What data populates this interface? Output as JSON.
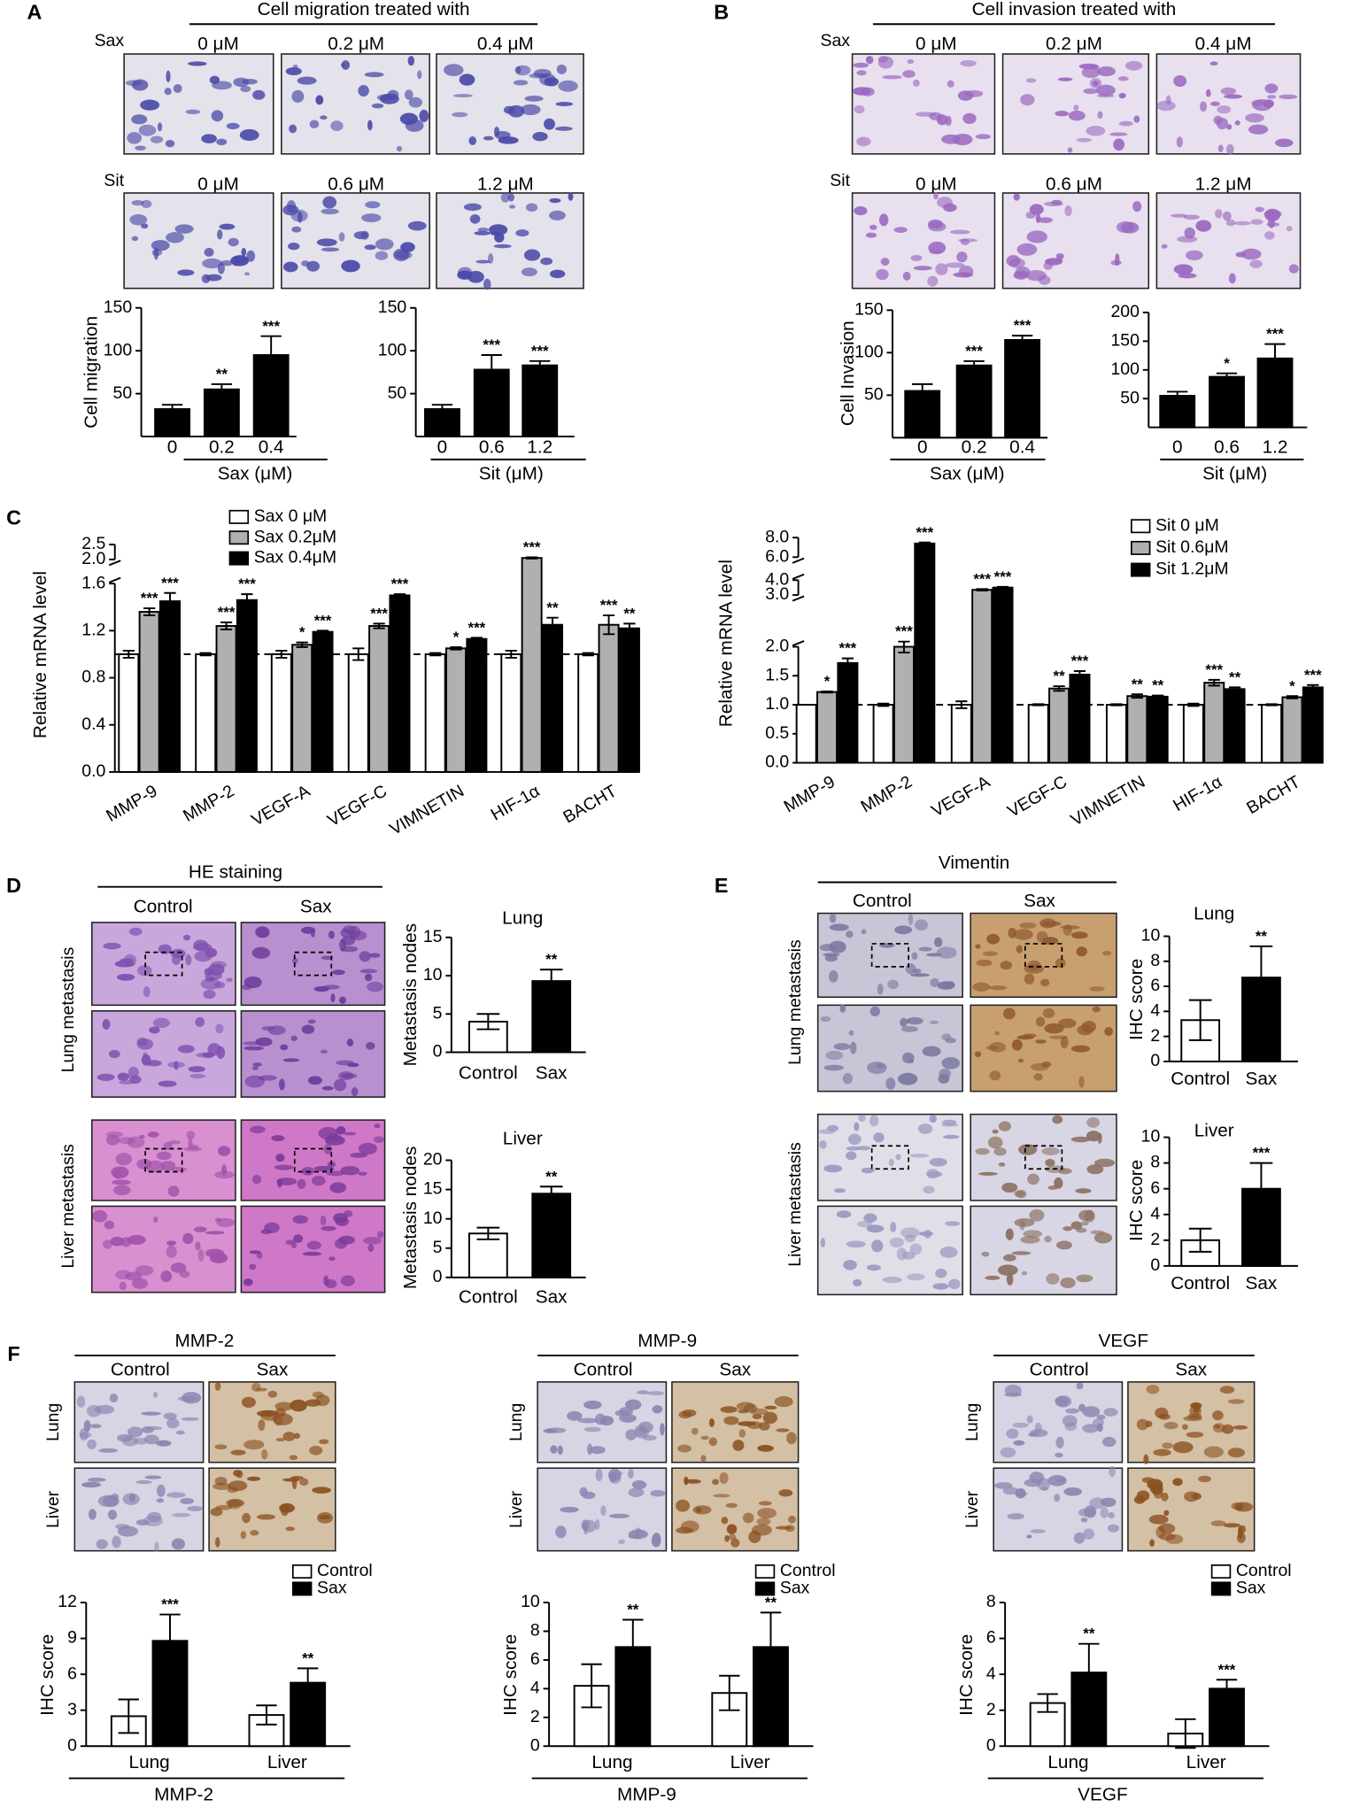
{
  "panels": {
    "A": {
      "letter": "A",
      "title": "Cell migration treated with",
      "rows": [
        {
          "drug": "Sax",
          "doses": [
            "0 μM",
            "0.2 μM",
            "0.4 μM"
          ]
        },
        {
          "drug": "Sit",
          "doses": [
            "0 μM",
            "0.6 μM",
            "1.2 μM"
          ]
        }
      ]
    },
    "B": {
      "letter": "B",
      "title": "Cell invasion treated with",
      "rows": [
        {
          "drug": "Sax",
          "doses": [
            "0 μM",
            "0.2 μM",
            "0.4 μM"
          ]
        },
        {
          "drug": "Sit",
          "doses": [
            "0 μM",
            "0.6 μM",
            "1.2 μM"
          ]
        }
      ]
    },
    "C": {
      "letter": "C"
    },
    "D": {
      "letter": "D",
      "title": "HE staining",
      "columns": [
        "Control",
        "Sax"
      ],
      "rows": [
        "Lung metastasis",
        "Liver metastasis"
      ]
    },
    "E": {
      "letter": "E",
      "title": "Vimentin",
      "columns": [
        "Control",
        "Sax"
      ],
      "rows": [
        "Lung metastasis",
        "Liver metastasis"
      ]
    },
    "F": {
      "letter": "F",
      "groups": [
        {
          "title": "MMP-2",
          "columns": [
            "Control",
            "Sax"
          ],
          "rows": [
            "Lung",
            "Liver"
          ]
        },
        {
          "title": "MMP-9",
          "columns": [
            "Control",
            "Sax"
          ],
          "rows": [
            "Lung",
            "Liver"
          ]
        },
        {
          "title": "VEGF",
          "columns": [
            "Control",
            "Sax"
          ],
          "rows": [
            "Lung",
            "Liver"
          ]
        }
      ]
    }
  },
  "chart_data": [
    {
      "type": "bar",
      "ylabel": "Cell migration",
      "xlabel": "Sax (μM)",
      "categories": [
        "0",
        "0.2",
        "0.4"
      ],
      "series": [
        {
          "color": "#000000",
          "values": [
            32,
            55,
            95
          ],
          "errors": [
            5,
            6,
            22
          ],
          "significance": [
            null,
            "**",
            "***"
          ]
        }
      ],
      "ylim": [
        0,
        150
      ],
      "yticks": [
        50,
        100,
        150
      ]
    },
    {
      "type": "bar",
      "xlabel": "Sit (μM)",
      "categories": [
        "0",
        "0.6",
        "1.2"
      ],
      "series": [
        {
          "color": "#000000",
          "values": [
            32,
            78,
            83
          ],
          "errors": [
            5,
            17,
            5
          ],
          "significance": [
            null,
            "***",
            "***"
          ]
        }
      ],
      "ylim": [
        0,
        150
      ],
      "yticks": [
        50,
        100,
        150
      ]
    },
    {
      "type": "bar",
      "ylabel": "Cell Invasion",
      "xlabel": "Sax (μM)",
      "categories": [
        "0",
        "0.2",
        "0.4"
      ],
      "series": [
        {
          "color": "#000000",
          "values": [
            55,
            85,
            115
          ],
          "errors": [
            8,
            5,
            5
          ],
          "significance": [
            null,
            "***",
            "***"
          ]
        }
      ],
      "ylim": [
        0,
        150
      ],
      "yticks": [
        50,
        100,
        150
      ]
    },
    {
      "type": "bar",
      "xlabel": "Sit (μM)",
      "categories": [
        "0",
        "0.6",
        "1.2"
      ],
      "series": [
        {
          "color": "#000000",
          "values": [
            55,
            88,
            120
          ],
          "errors": [
            7,
            6,
            25
          ],
          "significance": [
            null,
            "*",
            "***"
          ]
        }
      ],
      "ylim": [
        0,
        200
      ],
      "yticks": [
        50,
        100,
        150,
        200
      ]
    },
    {
      "type": "bar",
      "ylabel": "Relative mRNA level",
      "categories": [
        "MMP-9",
        "MMP-2",
        "VEGF-A",
        "VEGF-C",
        "VIMNETIN",
        "HIF-1α",
        "BACHT"
      ],
      "series": [
        {
          "name": "Sax 0 μM",
          "color": "#ffffff",
          "values": [
            1,
            1,
            1,
            1,
            1,
            1,
            1
          ],
          "errors": [
            0.03,
            0.01,
            0.03,
            0.05,
            0.01,
            0.03,
            0.01
          ]
        },
        {
          "name": "Sax 0.2μM",
          "color": "#b0b0b0",
          "values": [
            1.36,
            1.24,
            1.08,
            1.24,
            1.05,
            2.05,
            1.25
          ],
          "errors": [
            0.03,
            0.03,
            0.02,
            0.02,
            0.01,
            0.02,
            0.08
          ],
          "significance": [
            "***",
            "***",
            "*",
            "***",
            "*",
            "***",
            "***"
          ]
        },
        {
          "name": "Sax 0.4μM",
          "color": "#000000",
          "values": [
            1.45,
            1.46,
            1.19,
            1.5,
            1.13,
            1.25,
            1.22
          ],
          "errors": [
            0.07,
            0.05,
            0.01,
            0.01,
            0.01,
            0.06,
            0.04
          ],
          "significance": [
            "***",
            "***",
            "***",
            "***",
            "***",
            "**",
            "**"
          ]
        }
      ],
      "ylim": [
        0,
        2.5
      ],
      "ybreaks": [
        [
          1.6,
          2.0
        ]
      ],
      "yticks": [
        {
          "value": 0,
          "label": "0.0"
        },
        0.4,
        0.8,
        1.2,
        1.6,
        {
          "value": 2,
          "label": "2.0"
        },
        2.5
      ],
      "refline": 1.0,
      "legend": "top"
    },
    {
      "type": "bar",
      "ylabel": "Relative mRNA level",
      "categories": [
        "MMP-9",
        "MMP-2",
        "VEGF-A",
        "VEGF-C",
        "VIMNETIN",
        "HIF-1α",
        "BACHT"
      ],
      "series": [
        {
          "name": "Sit 0 μM",
          "color": "#ffffff",
          "values": [
            1,
            1,
            1,
            1,
            1,
            1,
            1
          ],
          "errors": [
            0,
            0.02,
            0.06,
            0.01,
            0.01,
            0.02,
            0.01
          ]
        },
        {
          "name": "Sit 0.6μM",
          "color": "#b0b0b0",
          "values": [
            1.22,
            2.0,
            3.35,
            1.28,
            1.15,
            1.38,
            1.13
          ],
          "errors": [
            0.01,
            0.1,
            0.05,
            0.04,
            0.03,
            0.05,
            0.02
          ],
          "significance": [
            "*",
            "***",
            "***",
            "**",
            "**",
            "***",
            "*"
          ]
        },
        {
          "name": "Sit 1.2μM",
          "color": "#000000",
          "values": [
            1.72,
            7.4,
            3.5,
            1.52,
            1.14,
            1.27,
            1.3
          ],
          "errors": [
            0.08,
            0.1,
            0.05,
            0.06,
            0.02,
            0.03,
            0.04
          ],
          "significance": [
            "***",
            "***",
            "***",
            "***",
            "**",
            "**",
            "***"
          ]
        }
      ],
      "ylim": [
        0,
        8
      ],
      "ybreaks": [
        [
          2,
          3
        ],
        [
          4,
          6
        ]
      ],
      "yticks": [
        {
          "value": 0,
          "label": "0.0"
        },
        0.5,
        {
          "value": 1,
          "label": "1.0"
        },
        1.5,
        {
          "value": 2,
          "label": "2.0"
        },
        {
          "value": 3,
          "label": "3.0"
        },
        {
          "value": 4,
          "label": "4.0"
        },
        {
          "value": 6,
          "label": "6.0"
        },
        {
          "value": 8,
          "label": "8.0"
        }
      ],
      "refline": 1.0,
      "legend": "top right"
    },
    {
      "type": "bar",
      "title": "Lung",
      "ylabel": "Metastasis nodes",
      "categories": [
        "Control",
        "Sax"
      ],
      "series": [
        {
          "colors": [
            "#ffffff",
            "#000000"
          ],
          "values": [
            4,
            9.3
          ],
          "errors": [
            1,
            1.5
          ],
          "significance": [
            null,
            "**"
          ]
        }
      ],
      "ylim": [
        0,
        15
      ],
      "yticks": [
        0,
        5,
        10,
        15
      ]
    },
    {
      "type": "bar",
      "title": "Liver",
      "ylabel": "Metastasis nodes",
      "categories": [
        "Control",
        "Sax"
      ],
      "series": [
        {
          "colors": [
            "#ffffff",
            "#000000"
          ],
          "values": [
            7.5,
            14.3
          ],
          "errors": [
            1,
            1.2
          ],
          "significance": [
            null,
            "**"
          ]
        }
      ],
      "ylim": [
        0,
        20
      ],
      "yticks": [
        0,
        5,
        10,
        15,
        20
      ]
    },
    {
      "type": "bar",
      "title": "Lung",
      "ylabel": "IHC score",
      "categories": [
        "Control",
        "Sax"
      ],
      "series": [
        {
          "colors": [
            "#ffffff",
            "#000000"
          ],
          "values": [
            3.3,
            6.7
          ],
          "errors": [
            1.6,
            2.5
          ],
          "significance": [
            null,
            "**"
          ]
        }
      ],
      "ylim": [
        0,
        10
      ],
      "yticks": [
        0,
        2,
        4,
        6,
        8,
        10
      ]
    },
    {
      "type": "bar",
      "title": "Liver",
      "ylabel": "IHC score",
      "categories": [
        "Control",
        "Sax"
      ],
      "series": [
        {
          "colors": [
            "#ffffff",
            "#000000"
          ],
          "values": [
            2,
            6
          ],
          "errors": [
            0.9,
            2
          ],
          "significance": [
            null,
            "***"
          ]
        }
      ],
      "ylim": [
        0,
        10
      ],
      "yticks": [
        0,
        2,
        4,
        6,
        8,
        10
      ]
    },
    {
      "type": "bar",
      "ylabel": "IHC score",
      "xlabel": "MMP-2",
      "categories": [
        "Lung",
        "Liver"
      ],
      "series": [
        {
          "name": "Control",
          "color": "#ffffff",
          "values": [
            2.5,
            2.6
          ],
          "errors": [
            1.4,
            0.8
          ]
        },
        {
          "name": "Sax",
          "color": "#000000",
          "values": [
            8.8,
            5.3
          ],
          "errors": [
            2.2,
            1.2
          ],
          "significance": [
            "***",
            "**"
          ]
        }
      ],
      "ylim": [
        0,
        12
      ],
      "yticks": [
        0,
        3,
        6,
        9,
        12
      ],
      "legend": "top right"
    },
    {
      "type": "bar",
      "ylabel": "IHC score",
      "xlabel": "MMP-9",
      "categories": [
        "Lung",
        "Liver"
      ],
      "series": [
        {
          "name": "Control",
          "color": "#ffffff",
          "values": [
            4.2,
            3.7
          ],
          "errors": [
            1.5,
            1.2
          ]
        },
        {
          "name": "Sax",
          "color": "#000000",
          "values": [
            6.9,
            6.9
          ],
          "errors": [
            1.9,
            2.4
          ],
          "significance": [
            "**",
            "**"
          ]
        }
      ],
      "ylim": [
        0,
        10
      ],
      "yticks": [
        0,
        2,
        4,
        6,
        8,
        10
      ],
      "legend": "top right"
    },
    {
      "type": "bar",
      "ylabel": "IHC score",
      "xlabel": "VEGF",
      "categories": [
        "Lung",
        "Liver"
      ],
      "series": [
        {
          "name": "Control",
          "color": "#ffffff",
          "values": [
            2.4,
            0.7
          ],
          "errors": [
            0.5,
            0.8
          ]
        },
        {
          "name": "Sax",
          "color": "#000000",
          "values": [
            4.1,
            3.2
          ],
          "errors": [
            1.6,
            0.5
          ],
          "significance": [
            "**",
            "***"
          ]
        }
      ],
      "ylim": [
        0,
        8
      ],
      "yticks": [
        0,
        2,
        4,
        6,
        8
      ],
      "legend": "top right"
    }
  ]
}
